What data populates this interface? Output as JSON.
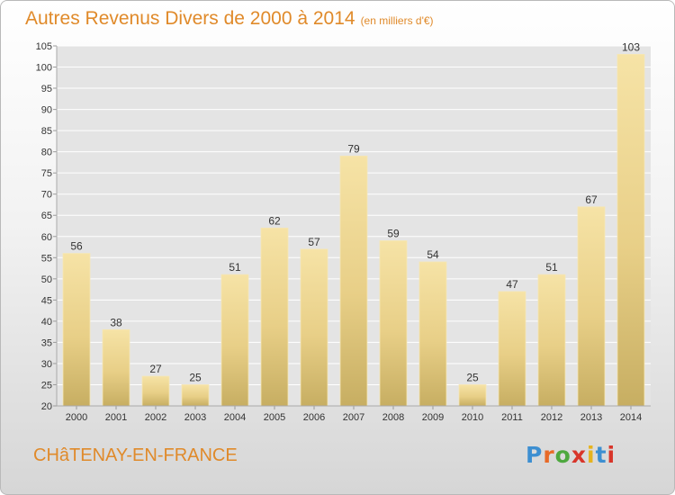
{
  "header": {
    "title": "Autres Revenus Divers de 2000 à 2014",
    "subtitle": "(en milliers d'€)"
  },
  "footer": {
    "location": "CHâTENAY-EN-FRANCE",
    "logo": {
      "text": "Proxiti",
      "letter_colors": [
        "#3d8fd1",
        "#e86a27",
        "#4ea83f",
        "#d8352a",
        "#e6b31e",
        "#3d8fd1",
        "#d8352a"
      ]
    }
  },
  "chart_data": {
    "type": "bar",
    "categories": [
      "2000",
      "2001",
      "2002",
      "2003",
      "2004",
      "2005",
      "2006",
      "2007",
      "2008",
      "2009",
      "2010",
      "2011",
      "2012",
      "2013",
      "2014"
    ],
    "values": [
      56,
      38,
      27,
      25,
      51,
      62,
      57,
      79,
      59,
      54,
      25,
      47,
      51,
      67,
      103
    ],
    "title": "Autres Revenus Divers de 2000 à 2014",
    "xlabel": "",
    "ylabel": "",
    "ylim": [
      20,
      105
    ],
    "yticks": [
      20,
      25,
      30,
      35,
      40,
      45,
      50,
      55,
      60,
      65,
      70,
      75,
      80,
      85,
      90,
      95,
      100,
      105
    ],
    "grid": true,
    "bar_color": "#e8cf87",
    "bar_color_light": "#f6e3a6",
    "bar_color_dark": "#c7ae62",
    "plot_background": "#e4e4e4",
    "grid_color": "#ffffff"
  }
}
